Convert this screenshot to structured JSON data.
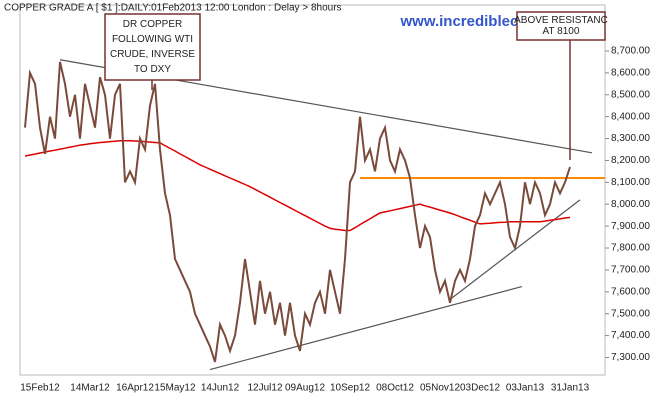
{
  "chart_data": {
    "type": "line",
    "title": "COPPER GRADE A [ $1 ]:DAILY:01Feb2013 12:00 London : Delay > 8hours",
    "watermark": "www.incrediblecharts.com",
    "categories": [
      null,
      null,
      null,
      "15Feb12",
      null,
      null,
      null,
      null,
      null,
      null,
      null,
      null,
      null,
      "14Mar12",
      null,
      null,
      null,
      null,
      null,
      null,
      null,
      null,
      "16Apr12",
      null,
      null,
      null,
      null,
      null,
      null,
      null,
      "15May12",
      null,
      null,
      null,
      null,
      null,
      null,
      null,
      null,
      "14Jun12",
      null,
      null,
      null,
      null,
      null,
      null,
      null,
      null,
      "12Jul12",
      null,
      null,
      null,
      null,
      null,
      null,
      null,
      "09Aug12",
      null,
      null,
      null,
      null,
      null,
      null,
      null,
      null,
      "10Sep12",
      null,
      null,
      null,
      null,
      null,
      null,
      null,
      null,
      "08Oct12",
      null,
      null,
      null,
      null,
      null,
      null,
      null,
      null,
      "05Nov12",
      null,
      null,
      null,
      null,
      null,
      null,
      null,
      "03Dec12",
      null,
      null,
      null,
      null,
      null,
      null,
      null,
      null,
      "03Jan13",
      null,
      null,
      null,
      null,
      null,
      null,
      null,
      null,
      "31Jan13"
    ],
    "series": [
      {
        "color": "#7a4a3a",
        "values": [
          8350,
          8600,
          8550,
          8350,
          8230,
          8400,
          8300,
          8650,
          8550,
          8400,
          8500,
          8300,
          8550,
          8450,
          8350,
          8580,
          8500,
          8300,
          8500,
          8550,
          8100,
          8150,
          8100,
          8300,
          8250,
          8450,
          8550,
          8250,
          8050,
          7950,
          7750,
          7700,
          7650,
          7600,
          7500,
          7450,
          7400,
          7350,
          7280,
          7450,
          7400,
          7330,
          7400,
          7550,
          7750,
          7600,
          7450,
          7650,
          7500,
          7600,
          7450,
          7550,
          7400,
          7550,
          7400,
          7330,
          7500,
          7450,
          7550,
          7600,
          7500,
          7700,
          7600,
          7500,
          7750,
          8100,
          8150,
          8400,
          8200,
          8250,
          8150,
          8300,
          8350,
          8200,
          8150,
          8250,
          8200,
          8120,
          7950,
          7800,
          7900,
          7850,
          7700,
          7600,
          7650,
          7550,
          7650,
          7700,
          7650,
          7750,
          7900,
          7950,
          8050,
          8000,
          8050,
          8100,
          8000,
          7850,
          7800,
          7900,
          8100,
          8000,
          8100,
          8050,
          7950,
          8000,
          8100,
          8050,
          8100,
          8170
        ]
      },
      {
        "color": "#dd0000",
        "values": [
          8220,
          8225,
          8229,
          8234,
          8238,
          8243,
          8247,
          8252,
          8256,
          8261,
          8265,
          8270,
          8273,
          8276,
          8279,
          8282,
          8284,
          8286,
          8288,
          8290,
          8290,
          8290,
          8289,
          8288,
          8286,
          8284,
          8282,
          8280,
          8268,
          8255,
          8243,
          8230,
          8218,
          8205,
          8193,
          8180,
          8170,
          8160,
          8150,
          8140,
          8130,
          8120,
          8110,
          8100,
          8090,
          8080,
          8068,
          8056,
          8044,
          8032,
          8020,
          8008,
          7996,
          7984,
          7972,
          7960,
          7948,
          7936,
          7924,
          7912,
          7900,
          7890,
          7886,
          7883,
          7880,
          7880,
          7893,
          7907,
          7920,
          7933,
          7947,
          7960,
          7965,
          7970,
          7975,
          7980,
          7985,
          7990,
          7995,
          8000,
          7993,
          7987,
          7980,
          7973,
          7967,
          7960,
          7952,
          7943,
          7935,
          7927,
          7918,
          7910,
          7912,
          7913,
          7915,
          7917,
          7918,
          7920,
          7920,
          7920,
          7920,
          7920,
          7920,
          7920,
          7923,
          7927,
          7930,
          7933,
          7937,
          7940
        ]
      }
    ],
    "resistance": {
      "value": 8120,
      "color": "#ff8c00",
      "start": 67
    },
    "trendlines": [
      {
        "start": [
          7,
          8660
        ],
        "end": [
          113.4,
          8235
        ]
      },
      {
        "start": [
          37,
          7245
        ],
        "end": [
          99.4,
          7624
        ]
      },
      {
        "start": [
          85,
          7565
        ],
        "end": [
          111,
          8020
        ]
      }
    ],
    "annotations": [
      {
        "lines": [
          "DR COPPER",
          "FOLLOWING WTI",
          "CRUDE, INVERSE",
          "TO DXY"
        ]
      },
      {
        "lines": [
          "ABOVE RESISTANC",
          "AT 8100"
        ]
      }
    ],
    "ylim": [
      7220,
      8910
    ],
    "yticks": [
      {
        "value": 7300,
        "label": "7,300.00"
      },
      {
        "value": 7400,
        "label": "7,400.00"
      },
      {
        "value": 7500,
        "label": "7,500.00"
      },
      {
        "value": 7600,
        "label": "7,600.00"
      },
      {
        "value": 7700,
        "label": "7,700.00"
      },
      {
        "value": 7800,
        "label": "7,800.00"
      },
      {
        "value": 7900,
        "label": "7,900.00"
      },
      {
        "value": 8000,
        "label": "8,000.00"
      },
      {
        "value": 8100,
        "label": "8,100.00"
      },
      {
        "value": 8200,
        "label": "8,200.00"
      },
      {
        "value": 8300,
        "label": "8,300.00"
      },
      {
        "value": 8400,
        "label": "8,400.00"
      },
      {
        "value": 8500,
        "label": "8,500.00"
      },
      {
        "value": 8600,
        "label": "8,600.00"
      },
      {
        "value": 8700,
        "label": "8,700.00"
      }
    ]
  }
}
